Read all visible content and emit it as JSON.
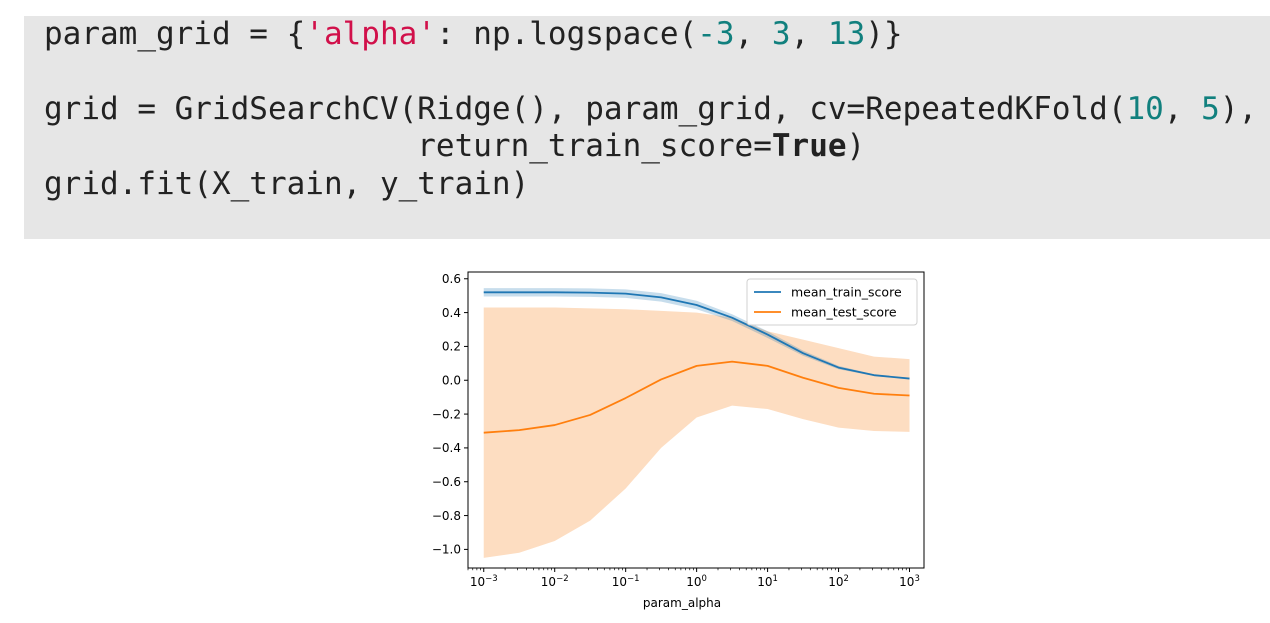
{
  "code": {
    "line1": [
      {
        "t": "param_grid = {",
        "c": ""
      },
      {
        "t": "'alpha'",
        "c": "str"
      },
      {
        "t": ": np.logspace(",
        "c": ""
      },
      {
        "t": "-3",
        "c": "num"
      },
      {
        "t": ", ",
        "c": ""
      },
      {
        "t": "3",
        "c": "num"
      },
      {
        "t": ", ",
        "c": ""
      },
      {
        "t": "13",
        "c": "num"
      },
      {
        "t": ")}",
        "c": ""
      }
    ],
    "line2": [
      {
        "t": "grid = GridSearchCV(Ridge(), param_grid, cv=RepeatedKFold(",
        "c": ""
      },
      {
        "t": "10",
        "c": "num"
      },
      {
        "t": ", ",
        "c": ""
      },
      {
        "t": "5",
        "c": "num"
      },
      {
        "t": "),",
        "c": ""
      }
    ],
    "line3": [
      {
        "t": "                    return_train_score=",
        "c": ""
      },
      {
        "t": "True",
        "c": "kw"
      },
      {
        "t": ")",
        "c": ""
      }
    ],
    "line4": [
      {
        "t": "grid.fit(X_train, y_train)",
        "c": ""
      }
    ]
  },
  "chart_data": {
    "type": "line",
    "xlabel": "param_alpha",
    "ylabel": "",
    "title": "",
    "xscale": "log",
    "xlim": [
      0.0006,
      1600
    ],
    "ylim": [
      -1.11,
      0.64
    ],
    "yticks": [
      0.6,
      0.4,
      0.2,
      0.0,
      -0.2,
      -0.4,
      -0.6,
      -0.8,
      -1.0
    ],
    "ytick_labels": [
      "0.6",
      "0.4",
      "0.2",
      "0.0",
      "−0.2",
      "−0.4",
      "−0.6",
      "−0.8",
      "−1.0"
    ],
    "xticks": [
      0.001,
      0.01,
      0.1,
      1,
      10,
      100,
      1000
    ],
    "xtick_labels": [
      {
        "base": "10",
        "exp": "−3"
      },
      {
        "base": "10",
        "exp": "−2"
      },
      {
        "base": "10",
        "exp": "−1"
      },
      {
        "base": "10",
        "exp": "0"
      },
      {
        "base": "10",
        "exp": "1"
      },
      {
        "base": "10",
        "exp": "2"
      },
      {
        "base": "10",
        "exp": "3"
      }
    ],
    "grid": false,
    "legend_position": "top-right",
    "x": [
      0.001,
      0.00316,
      0.01,
      0.0316,
      0.1,
      0.316,
      1,
      3.16,
      10,
      31.6,
      100,
      316,
      1000
    ],
    "series": [
      {
        "name": "mean_train_score",
        "color": "#1f77b4",
        "values": [
          0.52,
          0.52,
          0.52,
          0.518,
          0.512,
          0.49,
          0.445,
          0.37,
          0.27,
          0.16,
          0.075,
          0.03,
          0.01
        ],
        "upper": [
          0.545,
          0.545,
          0.545,
          0.543,
          0.537,
          0.515,
          0.47,
          0.39,
          0.29,
          0.175,
          0.085,
          0.035,
          0.012
        ],
        "lower": [
          0.495,
          0.495,
          0.495,
          0.493,
          0.487,
          0.465,
          0.42,
          0.35,
          0.25,
          0.145,
          0.065,
          0.025,
          0.008
        ]
      },
      {
        "name": "mean_test_score",
        "color": "#ff7f0e",
        "band_color": "#fdddc1",
        "values": [
          -0.31,
          -0.295,
          -0.265,
          -0.205,
          -0.105,
          0.005,
          0.085,
          0.11,
          0.085,
          0.015,
          -0.045,
          -0.08,
          -0.09
        ],
        "upper": [
          0.43,
          0.43,
          0.43,
          0.425,
          0.42,
          0.41,
          0.4,
          0.37,
          0.29,
          0.24,
          0.19,
          0.14,
          0.125
        ],
        "lower": [
          -1.05,
          -1.02,
          -0.95,
          -0.83,
          -0.64,
          -0.4,
          -0.22,
          -0.15,
          -0.17,
          -0.23,
          -0.28,
          -0.3,
          -0.305
        ]
      }
    ]
  }
}
